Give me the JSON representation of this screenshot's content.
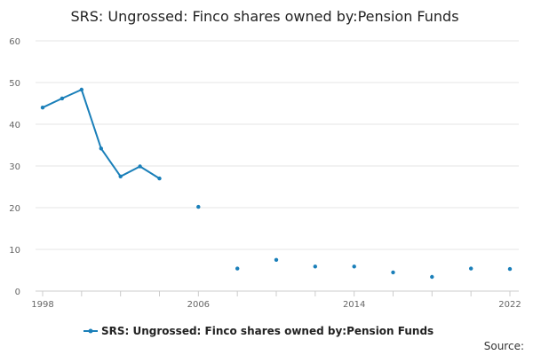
{
  "chart_data": {
    "type": "line",
    "title": "SRS: Ungrossed: Finco shares owned by:Pension Funds",
    "xlabel": "",
    "ylabel": "",
    "xlim": [
      1998,
      2022
    ],
    "ylim": [
      0,
      60
    ],
    "yticks": [
      0,
      10,
      20,
      30,
      40,
      50,
      60
    ],
    "xticks": [
      1998,
      2006,
      2014,
      2022
    ],
    "grid": true,
    "legend_position": "bottom",
    "color": "#1a7fb9",
    "series": [
      {
        "name": "SRS: Ungrossed: Finco shares owned by:Pension Funds",
        "x": [
          1998,
          1999,
          2000,
          2001,
          2002,
          2003,
          2004,
          2006,
          2008,
          2010,
          2012,
          2014,
          2016,
          2018,
          2020,
          2022
        ],
        "values": [
          44.0,
          46.2,
          48.3,
          34.2,
          27.5,
          29.9,
          27.0,
          20.2,
          5.4,
          7.5,
          5.9,
          5.9,
          4.5,
          3.4,
          5.4,
          5.3
        ]
      }
    ],
    "source_label": "Source:"
  }
}
